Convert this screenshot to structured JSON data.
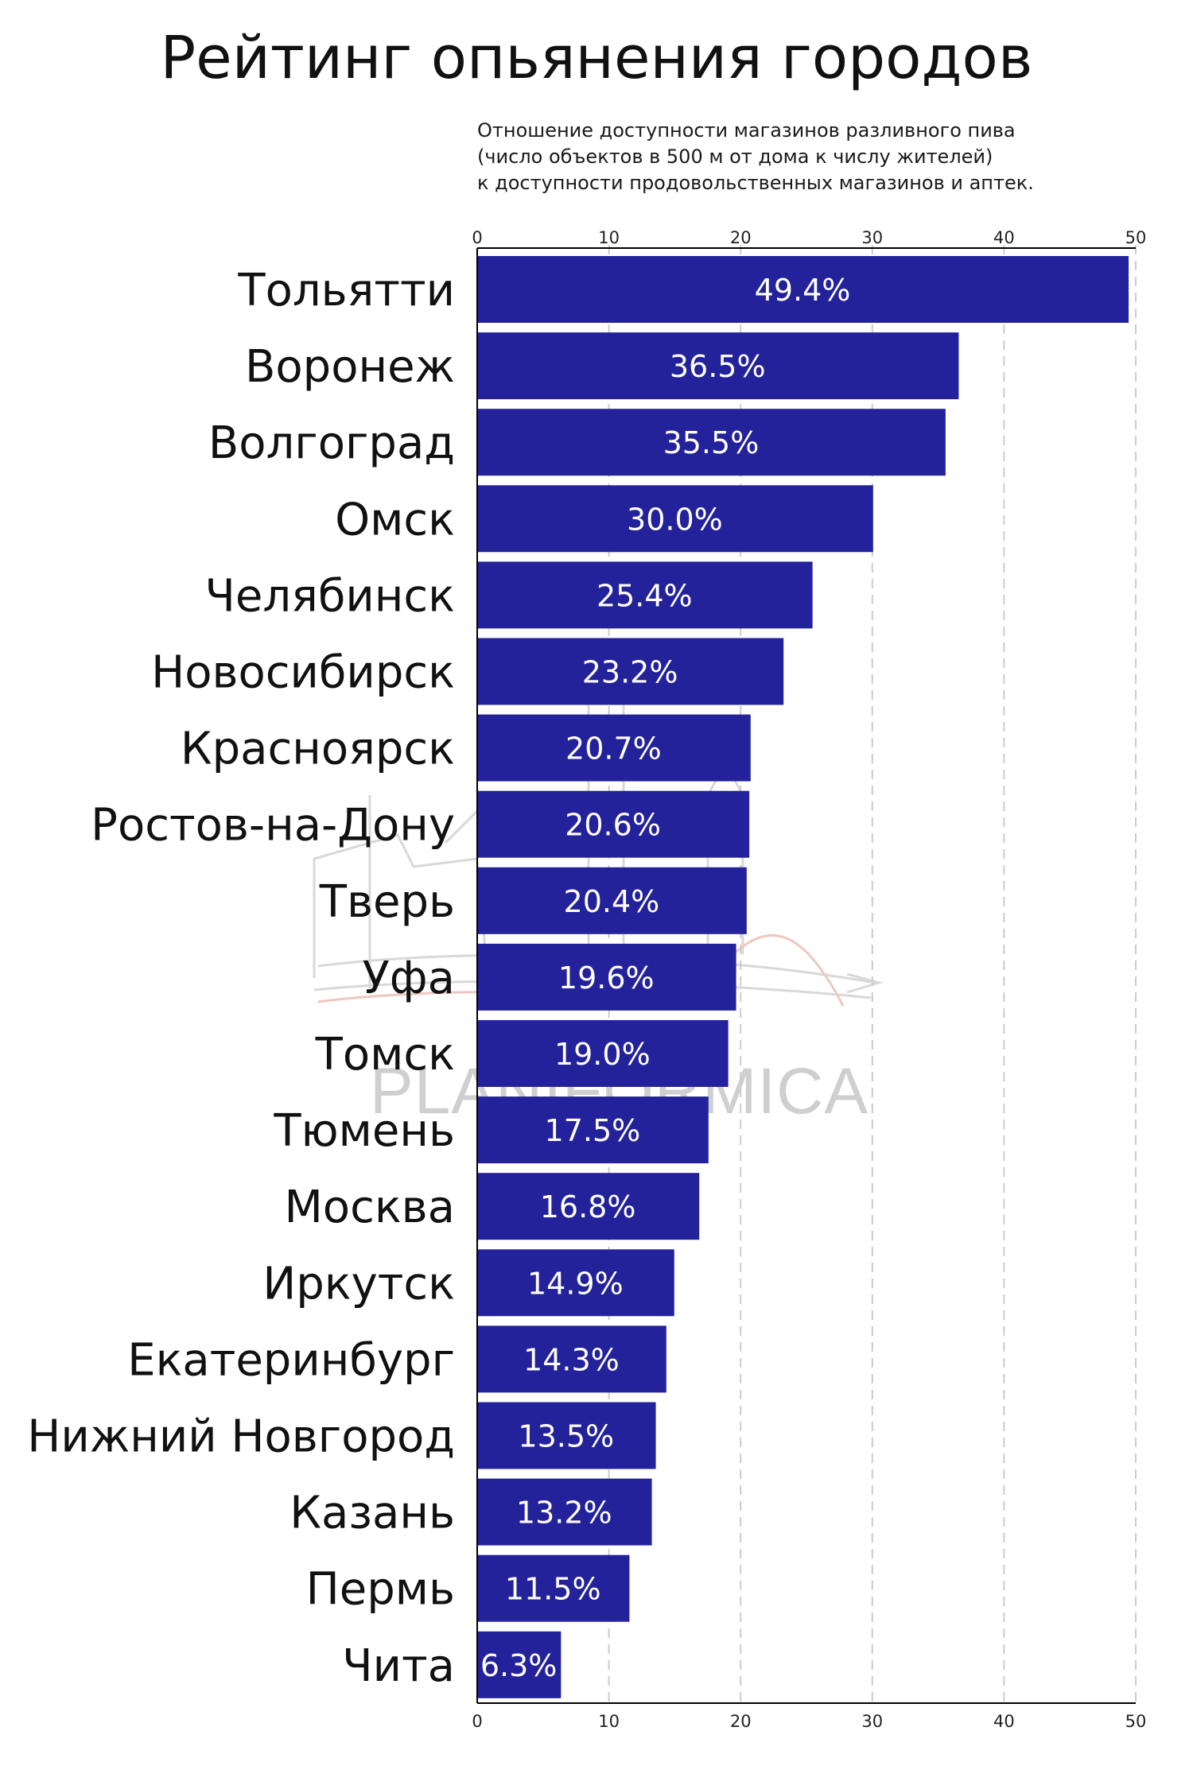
{
  "title": "Рейтинг опьянения городов",
  "subtitle_lines": [
    "Отношение доступности магазинов разливного пива",
    "(число объектов в 500 м от дома к числу жителей)",
    "к доступности продовольственных магазинов и аптек."
  ],
  "watermark": "PLANIFORMICA",
  "colors": {
    "bar": "#23229a",
    "value_label": "#ffffff",
    "grid": "#cccccc",
    "axis": "#000000"
  },
  "chart_data": {
    "type": "bar",
    "orientation": "horizontal",
    "title": "Рейтинг опьянения городов",
    "xlim": [
      0,
      50
    ],
    "x_ticks": [
      0,
      10,
      20,
      30,
      40,
      50
    ],
    "grid": "vertical dashed",
    "categories": [
      "Тольятти",
      "Воронеж",
      "Волгоград",
      "Омск",
      "Челябинск",
      "Новосибирск",
      "Красноярск",
      "Ростов-на-Дону",
      "Тверь",
      "Уфа",
      "Томск",
      "Тюмень",
      "Москва",
      "Иркутск",
      "Екатеринбург",
      "Нижний Новгород",
      "Казань",
      "Пермь",
      "Чита"
    ],
    "values": [
      49.4,
      36.5,
      35.5,
      30.0,
      25.4,
      23.2,
      20.7,
      20.6,
      20.4,
      19.6,
      19.0,
      17.5,
      16.8,
      14.9,
      14.3,
      13.5,
      13.2,
      11.5,
      6.3
    ],
    "value_labels": [
      "49.4%",
      "36.5%",
      "35.5%",
      "30.0%",
      "25.4%",
      "23.2%",
      "20.7%",
      "20.6%",
      "20.4%",
      "19.6%",
      "19.0%",
      "17.5%",
      "16.8%",
      "14.9%",
      "14.3%",
      "13.5%",
      "13.2%",
      "11.5%",
      "6.3%"
    ]
  }
}
